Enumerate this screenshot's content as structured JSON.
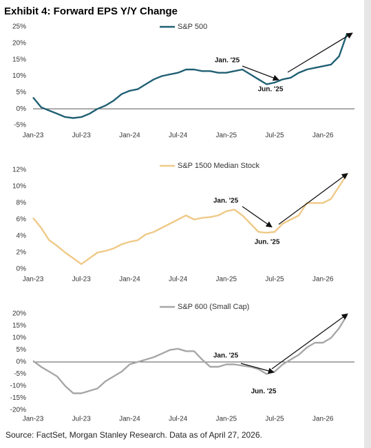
{
  "title": "Exhibit 4: Forward EPS Y/Y Change",
  "source": "Source: FactSet, Morgan Stanley Research. Data as of April 27, 2026.",
  "chart_data": [
    {
      "type": "line",
      "x": [
        "Jan-23",
        "Feb-23",
        "Mar-23",
        "Apr-23",
        "May-23",
        "Jun-23",
        "Jul-23",
        "Aug-23",
        "Sep-23",
        "Oct-23",
        "Nov-23",
        "Dec-23",
        "Jan-24",
        "Feb-24",
        "Mar-24",
        "Apr-24",
        "May-24",
        "Jun-24",
        "Jul-24",
        "Aug-24",
        "Sep-24",
        "Oct-24",
        "Nov-24",
        "Dec-24",
        "Jan-25",
        "Feb-25",
        "Mar-25",
        "Apr-25",
        "May-25",
        "Jun-25",
        "Jul-25",
        "Aug-25",
        "Sep-25",
        "Oct-25",
        "Nov-25",
        "Dec-25",
        "Jan-26",
        "Feb-26",
        "Mar-26",
        "Apr-26"
      ],
      "series": [
        {
          "name": "S&P 500",
          "color": "#1f5f73",
          "values": [
            3.5,
            0.5,
            -0.5,
            -1.5,
            -2.5,
            -2.8,
            -2.5,
            -1.5,
            0,
            1,
            2.5,
            4.5,
            5.5,
            6,
            7.5,
            9,
            10,
            10.5,
            11,
            12,
            12,
            11.5,
            11.5,
            11,
            11,
            11.5,
            12,
            10.5,
            9,
            7.5,
            8,
            9,
            9.5,
            11,
            12,
            12.5,
            13,
            13.5,
            16,
            23
          ]
        }
      ],
      "ylim": [
        -5,
        25
      ],
      "yticks": [
        {
          "value": -5,
          "label": "-5%"
        },
        {
          "value": 0,
          "label": "0%"
        },
        {
          "value": 5,
          "label": "5%"
        },
        {
          "value": 10,
          "label": "10%"
        },
        {
          "value": 15,
          "label": "15%"
        },
        {
          "value": 20,
          "label": "20%"
        },
        {
          "value": 25,
          "label": "25%"
        }
      ],
      "xticks": [
        "Jan-23",
        "Jul-23",
        "Jan-24",
        "Jul-24",
        "Jan-25",
        "Jul-25",
        "Jan-26"
      ],
      "zero_line": true,
      "annotations": [
        "Jan. '25",
        "Jun. '25"
      ]
    },
    {
      "type": "line",
      "x": [
        "Jan-23",
        "Feb-23",
        "Mar-23",
        "Apr-23",
        "May-23",
        "Jun-23",
        "Jul-23",
        "Aug-23",
        "Sep-23",
        "Oct-23",
        "Nov-23",
        "Dec-23",
        "Jan-24",
        "Feb-24",
        "Mar-24",
        "Apr-24",
        "May-24",
        "Jun-24",
        "Jul-24",
        "Aug-24",
        "Sep-24",
        "Oct-24",
        "Nov-24",
        "Dec-24",
        "Jan-25",
        "Feb-25",
        "Mar-25",
        "Apr-25",
        "May-25",
        "Jun-25",
        "Jul-25",
        "Aug-25",
        "Sep-25",
        "Oct-25",
        "Nov-25",
        "Dec-25",
        "Jan-26",
        "Feb-26",
        "Mar-26",
        "Apr-26"
      ],
      "series": [
        {
          "name": "S&P 1500 Median Stock",
          "color": "#efc987",
          "values": [
            6.2,
            5,
            3.5,
            2.8,
            2,
            1.3,
            0.6,
            1.3,
            2,
            2.2,
            2.5,
            3,
            3.3,
            3.5,
            4.2,
            4.5,
            5,
            5.5,
            6,
            6.5,
            6,
            6.2,
            6.3,
            6.5,
            7,
            7.2,
            6.5,
            5.5,
            4.5,
            4.4,
            4.5,
            5.5,
            6,
            6.5,
            8,
            8,
            8,
            8.5,
            10,
            11.5
          ]
        }
      ],
      "ylim": [
        0,
        12
      ],
      "yticks": [
        {
          "value": 0,
          "label": "0%"
        },
        {
          "value": 2,
          "label": "2%"
        },
        {
          "value": 4,
          "label": "4%"
        },
        {
          "value": 6,
          "label": "6%"
        },
        {
          "value": 8,
          "label": "8%"
        },
        {
          "value": 10,
          "label": "10%"
        },
        {
          "value": 12,
          "label": "12%"
        }
      ],
      "xticks": [
        "Jan-23",
        "Jul-23",
        "Jan-24",
        "Jul-24",
        "Jan-25",
        "Jul-25",
        "Jan-26"
      ],
      "zero_line": false,
      "annotations": [
        "Jan. '25",
        "Jun. '25"
      ]
    },
    {
      "type": "line",
      "x": [
        "Jan-23",
        "Feb-23",
        "Mar-23",
        "Apr-23",
        "May-23",
        "Jun-23",
        "Jul-23",
        "Aug-23",
        "Sep-23",
        "Oct-23",
        "Nov-23",
        "Dec-23",
        "Jan-24",
        "Feb-24",
        "Mar-24",
        "Apr-24",
        "May-24",
        "Jun-24",
        "Jul-24",
        "Aug-24",
        "Sep-24",
        "Oct-24",
        "Nov-24",
        "Dec-24",
        "Jan-25",
        "Feb-25",
        "Mar-25",
        "Apr-25",
        "May-25",
        "Jun-25",
        "Jul-25",
        "Aug-25",
        "Sep-25",
        "Oct-25",
        "Nov-25",
        "Dec-25",
        "Jan-26",
        "Feb-26",
        "Mar-26",
        "Apr-26"
      ],
      "series": [
        {
          "name": "S&P 600 (Small Cap)",
          "color": "#a6a6a6",
          "values": [
            0.5,
            -2,
            -4,
            -6,
            -10,
            -13,
            -13,
            -12,
            -11,
            -8,
            -6,
            -4,
            -1,
            0,
            1,
            2,
            3.5,
            5,
            5.5,
            4.5,
            4.5,
            1,
            -2,
            -2,
            -1,
            -1,
            -1.5,
            -2,
            -3,
            -5,
            -4,
            -1,
            1,
            3,
            6,
            8,
            8,
            10,
            14,
            19.5
          ]
        }
      ],
      "ylim": [
        -20,
        20
      ],
      "yticks": [
        {
          "value": -20,
          "label": "-20%"
        },
        {
          "value": -15,
          "label": "-15%"
        },
        {
          "value": -10,
          "label": "-10%"
        },
        {
          "value": -5,
          "label": "-5%"
        },
        {
          "value": 0,
          "label": "0%"
        },
        {
          "value": 5,
          "label": "5%"
        },
        {
          "value": 10,
          "label": "10%"
        },
        {
          "value": 15,
          "label": "15%"
        },
        {
          "value": 20,
          "label": "20%"
        }
      ],
      "xticks": [
        "Jan-23",
        "Jul-23",
        "Jan-24",
        "Jul-24",
        "Jan-25",
        "Jul-25",
        "Jan-26"
      ],
      "zero_line": true,
      "annotations": [
        "Jan. '25",
        "Jun. '25"
      ]
    }
  ]
}
